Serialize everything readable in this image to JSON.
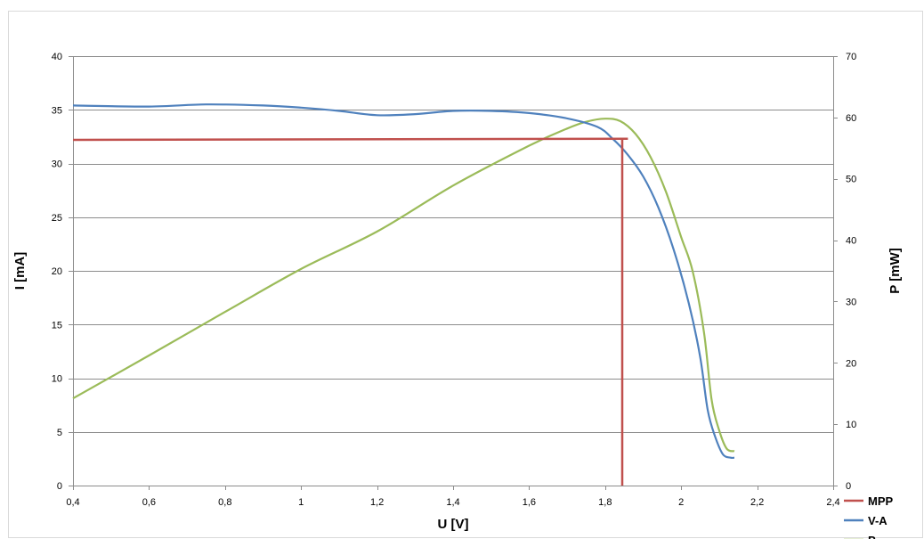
{
  "chart_data": {
    "type": "line",
    "title": "",
    "xlabel": "U [V]",
    "ylabel_left": "I [mA]",
    "ylabel_right": "P [mW]",
    "xlim": [
      0.4,
      2.4
    ],
    "ylim_left": [
      0,
      40
    ],
    "ylim_right": [
      0,
      70
    ],
    "x_ticks": [
      "0,4",
      "0,6",
      "0,8",
      "1",
      "1,2",
      "1,4",
      "1,6",
      "1,8",
      "2",
      "2,2",
      "2,4"
    ],
    "x_tick_values": [
      0.4,
      0.6,
      0.8,
      1.0,
      1.2,
      1.4,
      1.6,
      1.8,
      2.0,
      2.2,
      2.4
    ],
    "y_ticks_left": [
      "0",
      "5",
      "10",
      "15",
      "20",
      "25",
      "30",
      "35",
      "40"
    ],
    "y_tick_values_left": [
      0,
      5,
      10,
      15,
      20,
      25,
      30,
      35,
      40
    ],
    "y_ticks_right": [
      "0",
      "10",
      "20",
      "30",
      "40",
      "50",
      "60",
      "70"
    ],
    "y_tick_values_right": [
      0,
      10,
      20,
      30,
      40,
      50,
      60,
      70
    ],
    "grid": "horizontal",
    "legend_position": "bottom-right",
    "series": [
      {
        "name": "MPP",
        "axis": "left",
        "color": "#c0504d",
        "segments": [
          [
            [
              0.4,
              32.2
            ],
            [
              1.86,
              32.3
            ]
          ],
          [
            [
              1.845,
              32.3
            ],
            [
              1.845,
              0
            ]
          ]
        ]
      },
      {
        "name": "V-A",
        "axis": "left",
        "color": "#4f81bd",
        "points": [
          [
            0.4,
            35.4
          ],
          [
            0.6,
            35.3
          ],
          [
            0.75,
            35.5
          ],
          [
            0.9,
            35.4
          ],
          [
            1.0,
            35.2
          ],
          [
            1.1,
            34.9
          ],
          [
            1.2,
            34.5
          ],
          [
            1.3,
            34.6
          ],
          [
            1.4,
            34.9
          ],
          [
            1.5,
            34.9
          ],
          [
            1.6,
            34.7
          ],
          [
            1.7,
            34.2
          ],
          [
            1.78,
            33.4
          ],
          [
            1.82,
            32.3
          ],
          [
            1.86,
            30.8
          ],
          [
            1.9,
            28.8
          ],
          [
            1.94,
            25.9
          ],
          [
            1.98,
            22.0
          ],
          [
            2.02,
            17.0
          ],
          [
            2.05,
            12.0
          ],
          [
            2.07,
            7.0
          ],
          [
            2.09,
            4.5
          ],
          [
            2.11,
            2.9
          ],
          [
            2.13,
            2.6
          ],
          [
            2.14,
            2.6
          ]
        ]
      },
      {
        "name": "P",
        "axis": "right",
        "color": "#9bbb59",
        "points": [
          [
            0.4,
            14.2
          ],
          [
            0.6,
            21.2
          ],
          [
            0.8,
            28.3
          ],
          [
            1.0,
            35.3
          ],
          [
            1.2,
            41.4
          ],
          [
            1.4,
            48.9
          ],
          [
            1.6,
            55.4
          ],
          [
            1.7,
            58.2
          ],
          [
            1.75,
            59.3
          ],
          [
            1.8,
            59.8
          ],
          [
            1.84,
            59.4
          ],
          [
            1.88,
            57.3
          ],
          [
            1.92,
            53.5
          ],
          [
            1.96,
            47.9
          ],
          [
            2.0,
            40.5
          ],
          [
            2.03,
            35.0
          ],
          [
            2.06,
            25.0
          ],
          [
            2.08,
            14.0
          ],
          [
            2.1,
            9.0
          ],
          [
            2.12,
            6.0
          ],
          [
            2.14,
            5.6
          ]
        ]
      }
    ]
  }
}
